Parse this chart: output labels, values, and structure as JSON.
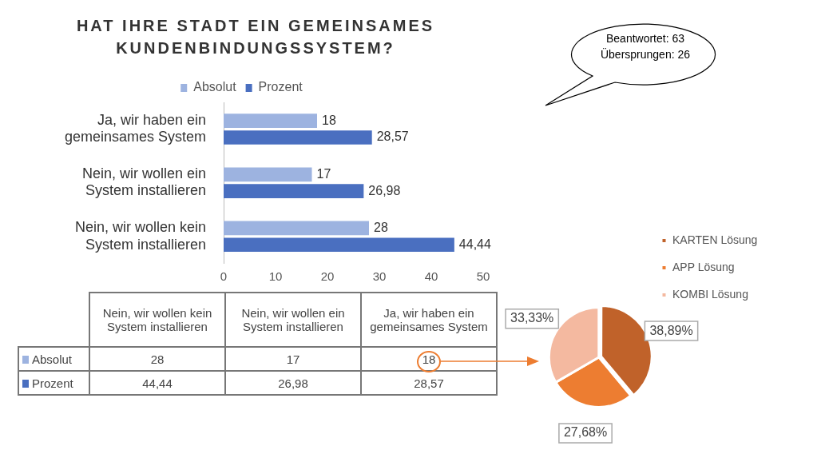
{
  "chart_data": [
    {
      "type": "bar",
      "orientation": "horizontal",
      "title": "HAT IHRE STADT EIN GEMEINSAMES KUNDENBINDUNGSSYSTEM?",
      "categories": [
        "Ja, wir haben ein gemeinsames System",
        "Nein, wir wollen ein System installieren",
        "Nein, wir wollen kein System installieren"
      ],
      "series": [
        {
          "name": "Absolut",
          "color": "#9db3e0",
          "values": [
            18,
            17,
            28
          ],
          "value_labels": [
            "18",
            "17",
            "28"
          ]
        },
        {
          "name": "Prozent",
          "color": "#4a6fc0",
          "values": [
            28.57,
            26.98,
            44.44
          ],
          "value_labels": [
            "28,57",
            "26,98",
            "44,44"
          ]
        }
      ],
      "xlim": [
        0,
        50
      ],
      "xticks": [
        0,
        10,
        20,
        30,
        40,
        50
      ],
      "legend": "top",
      "annotations": [
        "Beantwortet: 63",
        "Übersprungen: 26"
      ]
    },
    {
      "type": "pie",
      "categories": [
        "KARTEN Lösung",
        "APP Lösung",
        "KOMBI Lösung"
      ],
      "values": [
        38.89,
        27.68,
        33.33
      ],
      "colors": [
        "#c0622a",
        "#ed7d31",
        "#f4b9a0"
      ],
      "value_labels": [
        "38,89%",
        "27,68%",
        "33,33%"
      ],
      "legend": "right"
    }
  ]
}
